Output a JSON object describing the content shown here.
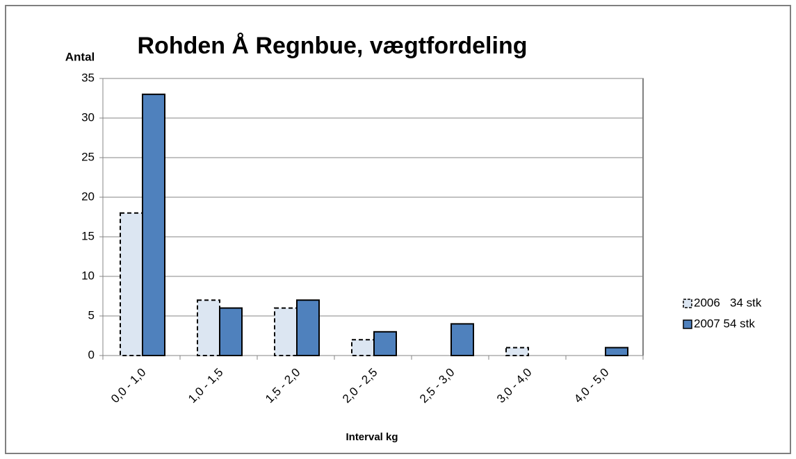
{
  "chart_data": {
    "type": "bar",
    "title": "Rohden Å Regnbue, vægtfordeling",
    "y_label": "Antal",
    "x_label": "Interval kg",
    "categories": [
      "0,0 - 1,0",
      "1,0 - 1,5",
      "1,5 - 2,0",
      "2,0 - 2,5",
      "2,5 - 3,0",
      "3,0 - 4,0",
      "4,0 - 5,0"
    ],
    "series": [
      {
        "name": "2006   34 stk",
        "color": "#dce6f2",
        "dashed": true,
        "values": [
          18,
          7,
          6,
          2,
          0,
          1,
          0
        ]
      },
      {
        "name": "2007 54 stk",
        "color": "#4f81bd",
        "dashed": false,
        "values": [
          33,
          6,
          7,
          3,
          4,
          0,
          1
        ]
      }
    ],
    "ylim": [
      0,
      35
    ],
    "yticks": [
      0,
      5,
      10,
      15,
      20,
      25,
      30,
      35
    ],
    "grid": true,
    "legend": "right"
  }
}
